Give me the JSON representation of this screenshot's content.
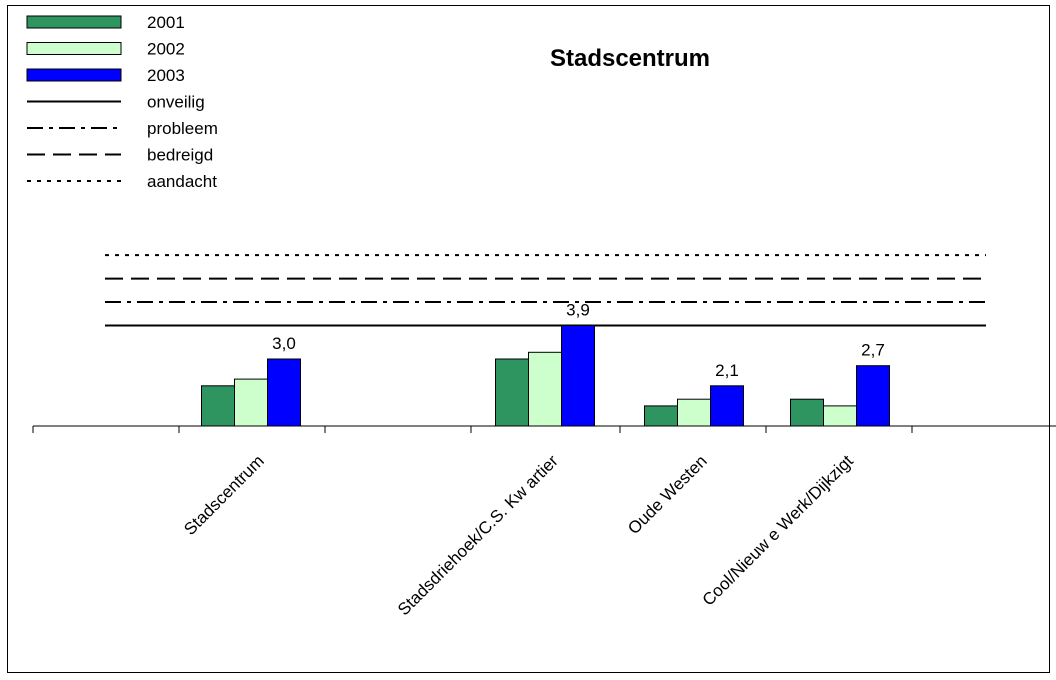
{
  "chart_data": {
    "type": "bar",
    "title": "Stadscentrum",
    "categories": [
      "Stadscentrum",
      "Stadsdriehoek/C.S. Kw artier",
      "Oude Westen",
      "Cool/Nieuw e Werk/Dijkzigt"
    ],
    "series": [
      {
        "name": "2001",
        "color": "#2e9460",
        "values": [
          1.2,
          2.0,
          0.6,
          0.8
        ]
      },
      {
        "name": "2002",
        "color": "#ccffcc",
        "values": [
          1.4,
          2.2,
          0.8,
          0.6
        ]
      },
      {
        "name": "2003",
        "color": "#0000ff",
        "values": [
          2.0,
          3.0,
          1.2,
          1.8
        ]
      }
    ],
    "data_labels": [
      "3,0",
      "3,9",
      "2,1",
      "2,7"
    ],
    "reference_lines": [
      {
        "name": "onveilig",
        "style": "solid",
        "value": 3.0
      },
      {
        "name": "probleem",
        "style": "dash-dot",
        "value": 3.7
      },
      {
        "name": "bedreigd",
        "style": "dashed",
        "value": 4.4
      },
      {
        "name": "aandacht",
        "style": "dotted",
        "value": 5.1
      }
    ],
    "ylim": [
      0,
      6
    ],
    "xlabel": "",
    "ylabel": "",
    "grid": false,
    "legend_position": "top-left"
  }
}
